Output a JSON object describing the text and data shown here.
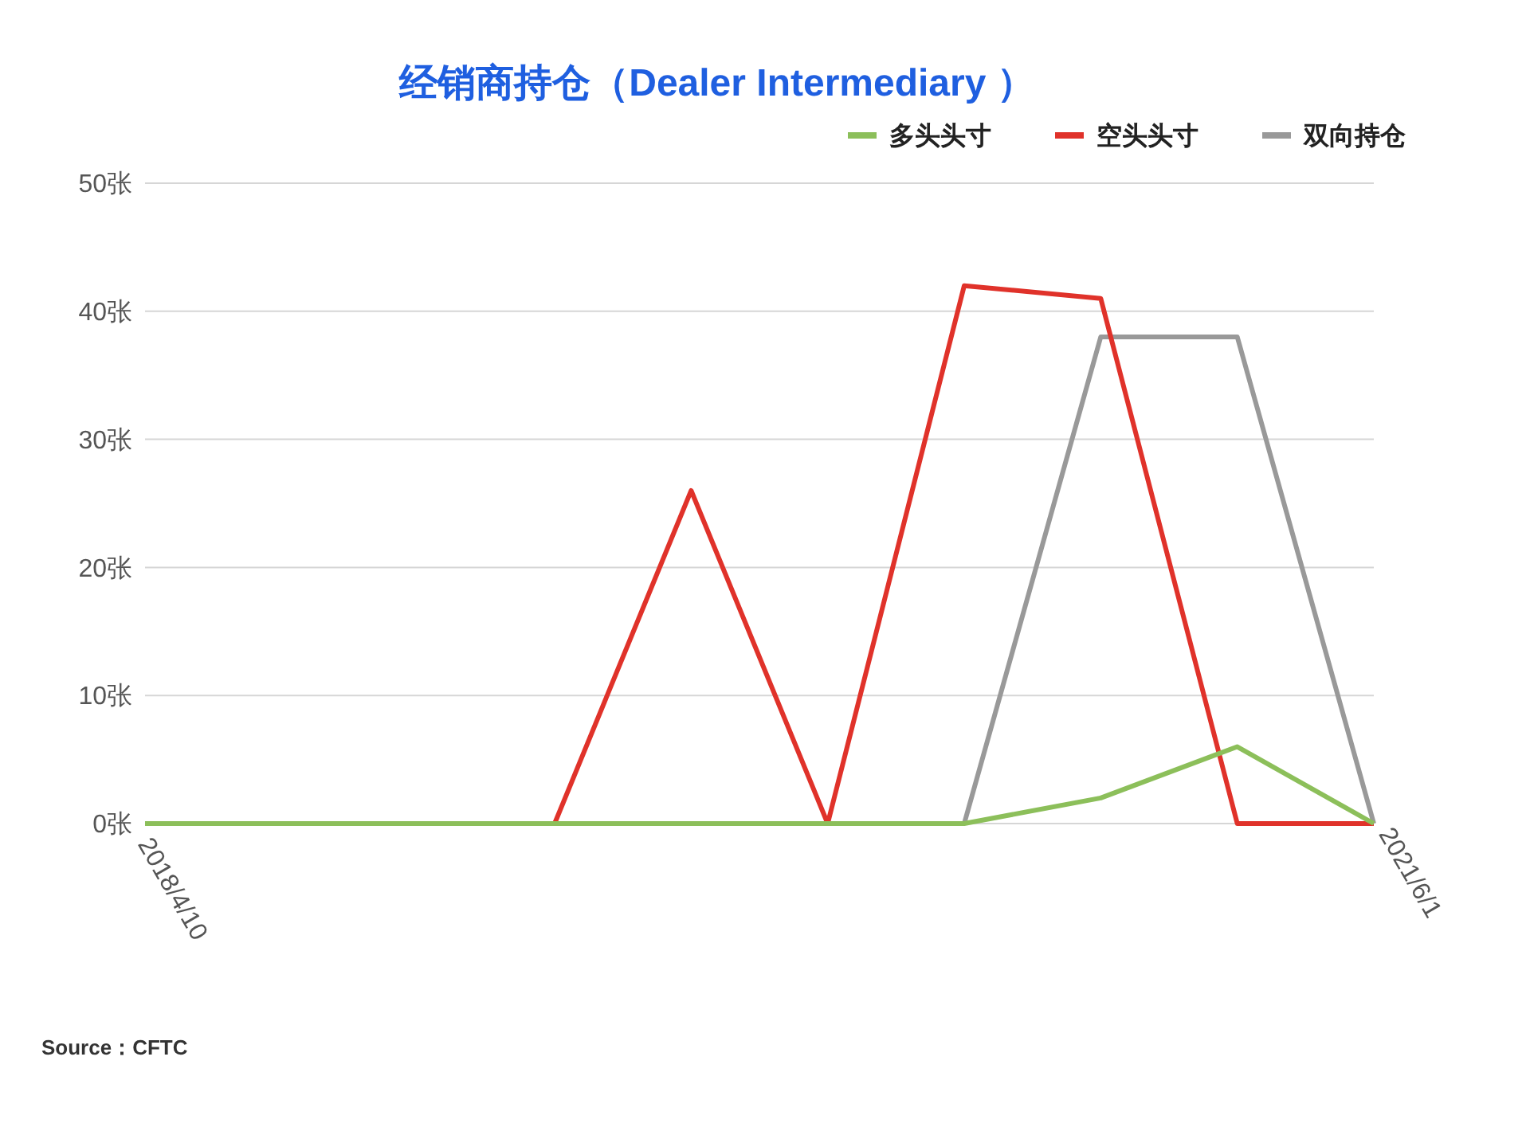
{
  "chart_data": {
    "type": "line",
    "title": "经销商持仓（Dealer Intermediary ）",
    "categories": [
      "2018/4/10",
      null,
      null,
      null,
      null,
      null,
      null,
      null,
      null,
      "2021/6/1"
    ],
    "series": [
      {
        "name": "多头头寸",
        "color": "#8cbf5a",
        "values": [
          0,
          0,
          0,
          0,
          0,
          0,
          0,
          2,
          6,
          0
        ]
      },
      {
        "name": "空头头寸",
        "color": "#e0322a",
        "values": [
          null,
          null,
          null,
          0,
          26,
          0,
          42,
          41,
          0,
          0
        ]
      },
      {
        "name": "双向持仓",
        "color": "#999999",
        "values": [
          null,
          null,
          null,
          null,
          null,
          null,
          0,
          38,
          38,
          0
        ]
      }
    ],
    "ylim": [
      0,
      50
    ],
    "yticks": [
      {
        "value": 0,
        "label": "0张"
      },
      {
        "value": 10,
        "label": "10张"
      },
      {
        "value": 20,
        "label": "20张"
      },
      {
        "value": 30,
        "label": "30张"
      },
      {
        "value": 40,
        "label": "40张"
      },
      {
        "value": 50,
        "label": "50张"
      }
    ],
    "grid": "y",
    "legend": "top right",
    "marker": "none",
    "line_style": "solid",
    "annotations": [
      "Source：CFTC"
    ]
  }
}
